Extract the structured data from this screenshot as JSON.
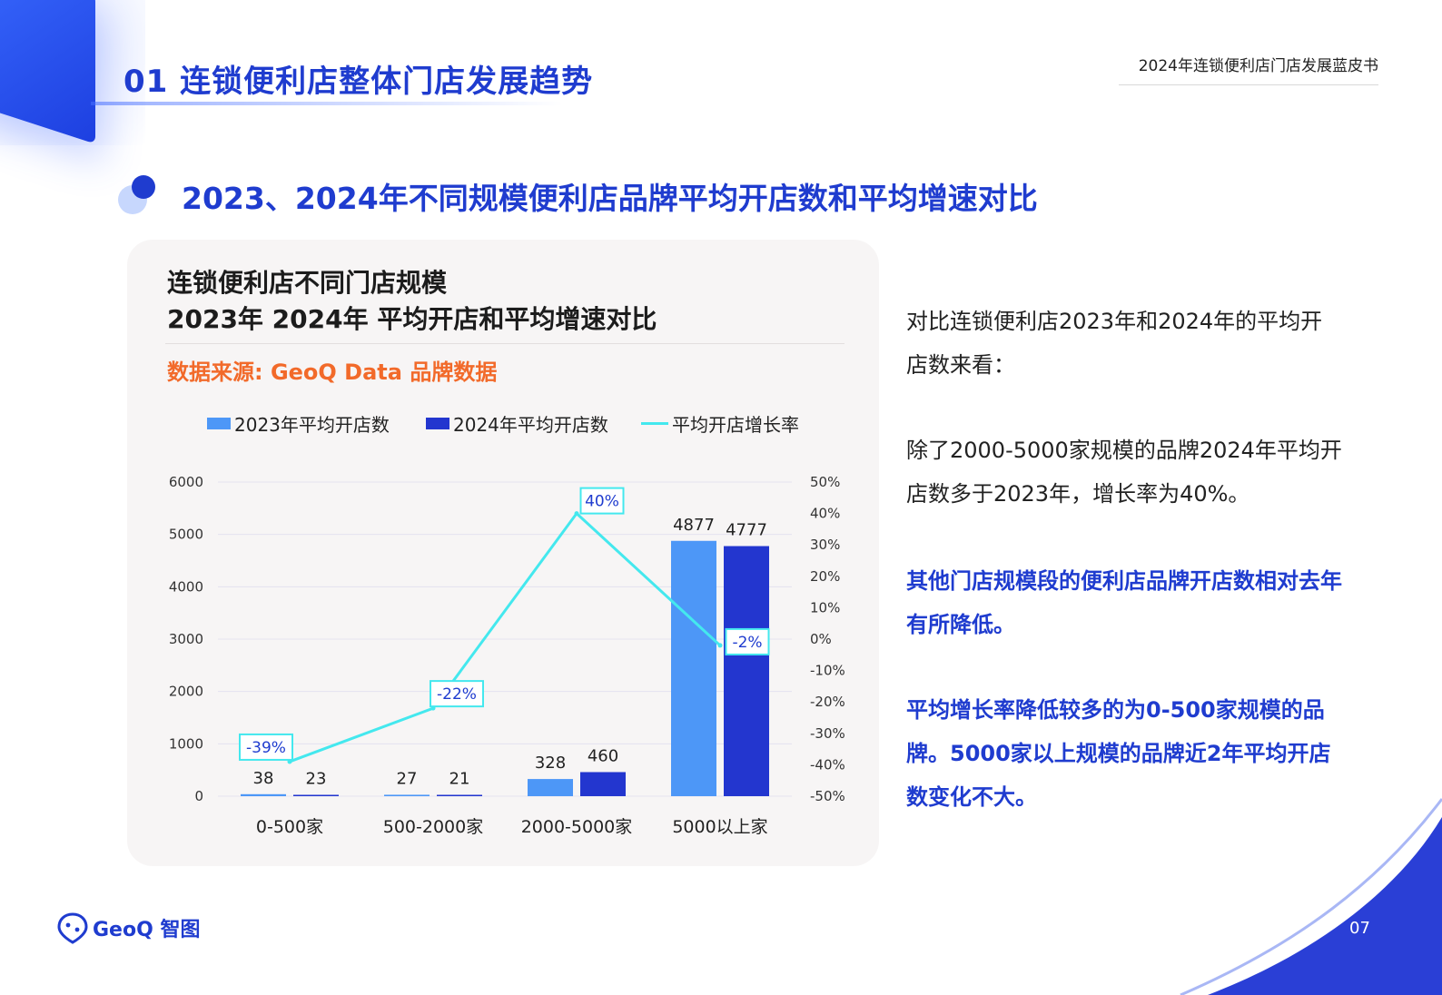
{
  "header": {
    "section_title": "01 连锁便利店整体门店发展趋势",
    "report_name": "2024年连锁便利店门店发展蓝皮书"
  },
  "subtitle": "2023、2024年不同规模便利店品牌平均开店数和平均增速对比",
  "chart_card": {
    "title_line1": "连锁便利店不同门店规模",
    "title_line2": "2023年 2024年 平均开店和平均增速对比",
    "source": "数据来源: GeoQ Data 品牌数据"
  },
  "chart_data": {
    "type": "bar",
    "categories": [
      "0-500家",
      "500-2000家",
      "2000-5000家",
      "5000以上家"
    ],
    "series": [
      {
        "name": "2023年平均开店数",
        "type": "bar",
        "axis": "left",
        "color": "#4d97f7",
        "values": [
          38,
          27,
          328,
          4877
        ]
      },
      {
        "name": "2024年平均开店数",
        "type": "bar",
        "axis": "left",
        "color": "#2336cf",
        "values": [
          23,
          21,
          460,
          4777
        ]
      },
      {
        "name": "平均开店增长率",
        "type": "line",
        "axis": "right",
        "color": "#44e8ee",
        "values": [
          -39,
          -22,
          40,
          -2
        ],
        "labels": [
          "-39%",
          "-22%",
          "40%",
          "-2%"
        ]
      }
    ],
    "left_axis": {
      "ylim": [
        0,
        6000
      ],
      "ticks": [
        "0",
        "1000",
        "2000",
        "3000",
        "4000",
        "5000",
        "6000"
      ]
    },
    "right_axis": {
      "ylim": [
        -50,
        50
      ],
      "ticks": [
        "-50%",
        "-40%",
        "-30%",
        "-20%",
        "-10%",
        "0%",
        "10%",
        "20%",
        "30%",
        "40%",
        "50%"
      ]
    },
    "grid": true,
    "legend_position": "top"
  },
  "right_panel": {
    "p1": "对比连锁便利店2023年和2024年的平均开店数来看：",
    "p2": "除了2000-5000家规模的品牌2024年平均开店数多于2023年，增长率为40%。",
    "p3": "其他门店规模段的便利店品牌开店数相对去年有所降低。",
    "p4": "平均增长率降低较多的为0-500家规模的品牌。5000家以上规模的品牌近2年平均开店数变化不大。"
  },
  "footer": {
    "logo_text": "GeoQ 智图",
    "page_number": "07"
  },
  "colors": {
    "brand_blue": "#1f3ccf",
    "accent_orange": "#f26a2a"
  }
}
